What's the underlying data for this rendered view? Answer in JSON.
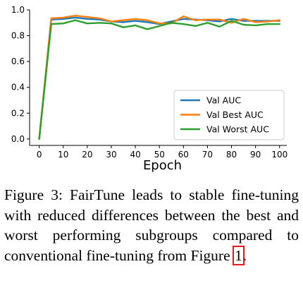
{
  "chart_data": {
    "type": "line",
    "xlabel": "Epoch",
    "ylabel": "",
    "xlim": [
      -4,
      103
    ],
    "ylim": [
      -0.05,
      1.0
    ],
    "xticks": [
      0,
      10,
      20,
      30,
      40,
      50,
      60,
      70,
      80,
      90,
      100
    ],
    "yticks": [
      0.0,
      0.2,
      0.4,
      0.6,
      0.8,
      1.0
    ],
    "ytick_labels": [
      "0.0",
      "0.2",
      "0.4",
      "0.6",
      "0.8",
      "1.0"
    ],
    "legend_position": "lower-right",
    "x": [
      0,
      5,
      10,
      15,
      20,
      25,
      30,
      35,
      40,
      45,
      50,
      55,
      60,
      65,
      70,
      75,
      80,
      85,
      90,
      95,
      100
    ],
    "series": [
      {
        "name": "Val AUC",
        "color": "#1f77b4",
        "values": [
          0.0,
          0.925,
          0.93,
          0.94,
          0.93,
          0.925,
          0.91,
          0.905,
          0.915,
          0.905,
          0.89,
          0.91,
          0.93,
          0.925,
          0.92,
          0.91,
          0.93,
          0.915,
          0.915,
          0.915,
          0.915
        ]
      },
      {
        "name": "Val Best AUC",
        "color": "#ff7f0e",
        "values": [
          0.0,
          0.935,
          0.94,
          0.955,
          0.945,
          0.935,
          0.91,
          0.92,
          0.93,
          0.92,
          0.895,
          0.895,
          0.95,
          0.92,
          0.925,
          0.925,
          0.9,
          0.93,
          0.905,
          0.91,
          0.92
        ]
      },
      {
        "name": "Val Worst AUC",
        "color": "#2ca02c",
        "values": [
          0.0,
          0.89,
          0.895,
          0.92,
          0.895,
          0.9,
          0.895,
          0.865,
          0.88,
          0.85,
          0.875,
          0.9,
          0.89,
          0.875,
          0.9,
          0.87,
          0.915,
          0.885,
          0.88,
          0.89,
          0.89
        ]
      }
    ]
  },
  "caption": {
    "text": "Figure 3:  FairTune leads to stable fine-tuning with reduced differences between the best and worst performing subgroups compared to conventional fine-tuning from Figure ",
    "ref": "1",
    "end": "."
  }
}
